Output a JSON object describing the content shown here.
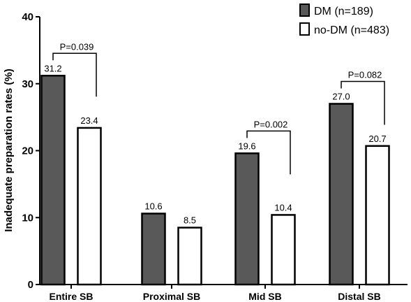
{
  "chart_data": {
    "type": "bar",
    "title": "",
    "xlabel": "",
    "ylabel": "Inadequate preparation rates (%)",
    "ylim": [
      0,
      40
    ],
    "yticks": [
      0,
      10,
      20,
      30,
      40
    ],
    "categories": [
      "Entire SB",
      "Proximal SB",
      "Mid SB",
      "Distal SB"
    ],
    "series": [
      {
        "name": "DM (n=189)",
        "color": "#595959",
        "values": [
          31.2,
          10.6,
          19.6,
          27.0
        ],
        "labels": [
          "31.2",
          "10.6",
          "19.6",
          "27.0"
        ]
      },
      {
        "name": "no-DM (n=483)",
        "color": "#ffffff",
        "values": [
          23.4,
          8.5,
          10.4,
          20.7
        ],
        "labels": [
          "23.4",
          "8.5",
          "10.4",
          "20.7"
        ]
      }
    ],
    "legend_position": "top-right",
    "grid": false,
    "annotations": [
      {
        "category": "Entire SB",
        "text": "P=0.039"
      },
      {
        "category": "Mid SB",
        "text": "P=0.002"
      },
      {
        "category": "Distal SB",
        "text": "P=0.082"
      }
    ]
  }
}
